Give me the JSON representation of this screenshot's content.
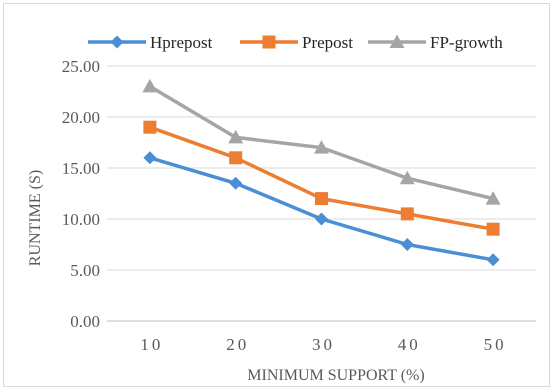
{
  "chart_data": {
    "type": "line",
    "x": [
      10,
      20,
      30,
      40,
      50
    ],
    "x_tick_labels": [
      "10",
      "20",
      "30",
      "40",
      "50"
    ],
    "xlabel": "MINIMUM SUPPORT (%)",
    "ylabel": "RUNTIME (S)",
    "ylim": [
      0,
      25
    ],
    "y_tick_labels": [
      "0.00",
      "5.00",
      "10.00",
      "15.00",
      "20.00",
      "25.00"
    ],
    "grid": "horizontal",
    "legend_position": "top",
    "series": [
      {
        "name": "Hprepost",
        "color": "#4a8fd6",
        "marker": "diamond",
        "values": [
          16,
          13.5,
          10,
          7.5,
          6
        ]
      },
      {
        "name": "Prepost",
        "color": "#ed7d31",
        "marker": "square",
        "values": [
          19,
          16,
          12,
          10.5,
          9
        ]
      },
      {
        "name": "FP-growth",
        "color": "#a5a5a5",
        "marker": "triangle",
        "values": [
          23,
          18,
          17,
          14,
          12
        ]
      }
    ]
  }
}
